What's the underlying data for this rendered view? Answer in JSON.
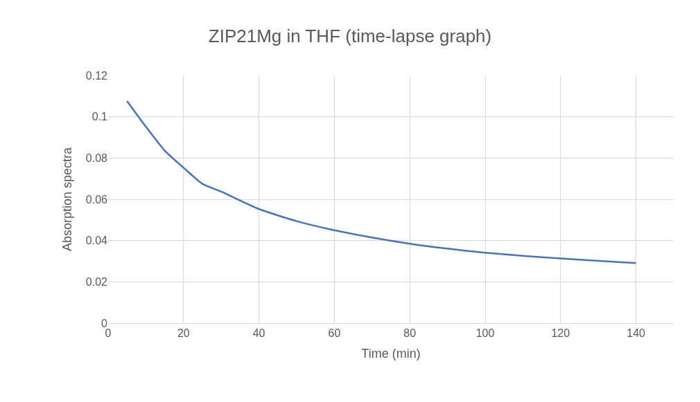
{
  "chart_data": {
    "type": "line",
    "title": "ZIP21Mg in THF (time-lapse graph)",
    "xlabel": "Time (min)",
    "ylabel": "Absorption spectra",
    "x": [
      5,
      10,
      15,
      20,
      25,
      30,
      40,
      50,
      60,
      70,
      80,
      90,
      100,
      110,
      120,
      130,
      140
    ],
    "series": [
      {
        "color": "#4472c4",
        "values": [
          0.1076,
          0.0952,
          0.0836,
          0.0753,
          0.0675,
          0.0637,
          0.0553,
          0.0494,
          0.045,
          0.0415,
          0.0385,
          0.0361,
          0.0341,
          0.0326,
          0.0313,
          0.0302,
          0.0291
        ]
      }
    ],
    "xlim": [
      0,
      150
    ],
    "xticks": [
      0,
      20,
      40,
      60,
      80,
      100,
      120,
      140
    ],
    "ylim": [
      0,
      0.12
    ],
    "yticks": [
      0,
      0.02,
      0.04,
      0.06,
      0.08,
      0.1,
      0.12
    ],
    "grid": true,
    "marker": "none",
    "line_style": "solid"
  }
}
